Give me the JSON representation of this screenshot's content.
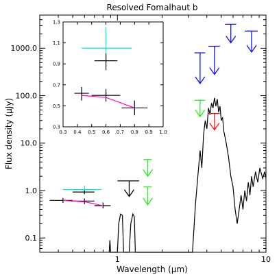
{
  "chart_data": [
    {
      "type": "scatter",
      "title": "Resolved Fomalhaut b",
      "xlabel": "Wavelength (μm)",
      "ylabel": "Flux density (μJy)",
      "xscale": "log",
      "yscale": "log",
      "xlim": [
        0.3,
        10
      ],
      "ylim": [
        0.05,
        5000
      ],
      "x_ticks": [
        1,
        10
      ],
      "x_tick_labels": [
        "1",
        "10"
      ],
      "y_ticks": [
        0.1,
        1,
        10,
        100,
        1000
      ],
      "y_tick_labels": [
        "0.1",
        "1.0",
        "10.0",
        "100.0",
        "1000.0"
      ],
      "series": [
        {
          "style": "errorbar",
          "color": "#00e5e5",
          "points": [
            {
              "x": 0.6,
              "y": 1.05,
              "xlo": 0.43,
              "xhi": 0.78,
              "ylo": 0.9,
              "yhi": 1.25
            }
          ]
        },
        {
          "style": "errorbar",
          "color": "#000000",
          "points": [
            {
              "x": 0.6,
              "y": 0.93,
              "xlo": 0.5,
              "xhi": 0.7,
              "ylo": 0.84,
              "yhi": 1.0
            },
            {
              "x": 0.43,
              "y": 0.62,
              "xlo": 0.35,
              "xhi": 0.5,
              "ylo": 0.55,
              "yhi": 0.7
            },
            {
              "x": 0.6,
              "y": 0.6,
              "xlo": 0.5,
              "xhi": 0.7,
              "ylo": 0.52,
              "yhi": 0.68
            },
            {
              "x": 0.8,
              "y": 0.48,
              "xlo": 0.7,
              "xhi": 0.9,
              "ylo": 0.42,
              "yhi": 0.56
            }
          ]
        },
        {
          "style": "line",
          "color": "#ff00cc",
          "points": [
            {
              "x": 0.43,
              "y": 0.62
            },
            {
              "x": 0.6,
              "y": 0.58
            },
            {
              "x": 0.8,
              "y": 0.48
            }
          ]
        },
        {
          "style": "upper_limit",
          "color": "#000000",
          "points": [
            {
              "x": 1.2,
              "y": 1.6,
              "xlo": 1.0,
              "xhi": 1.4,
              "arrow_to": 0.75
            }
          ]
        },
        {
          "style": "upper_limit",
          "color": "#22ee22",
          "points": [
            {
              "x": 1.6,
              "y": 4.5,
              "xlo": 1.5,
              "xhi": 1.7,
              "arrow_to": 2.0
            },
            {
              "x": 1.6,
              "y": 1.2,
              "xlo": 1.5,
              "xhi": 1.7,
              "arrow_to": 0.5
            },
            {
              "x": 3.6,
              "y": 80,
              "xlo": 3.3,
              "xhi": 3.9,
              "arrow_to": 36
            }
          ]
        },
        {
          "style": "upper_limit",
          "color": "#ff1111",
          "points": [
            {
              "x": 4.5,
              "y": 42,
              "xlo": 4.1,
              "xhi": 4.9,
              "arrow_to": 19
            }
          ]
        },
        {
          "style": "upper_limit",
          "color": "#1111ee",
          "points": [
            {
              "x": 3.6,
              "y": 800,
              "xlo": 3.3,
              "xhi": 3.9,
              "arrow_to": 180
            },
            {
              "x": 4.5,
              "y": 1100,
              "xlo": 4.1,
              "xhi": 4.9,
              "arrow_to": 280
            },
            {
              "x": 5.8,
              "y": 3200,
              "xlo": 5.3,
              "xhi": 6.3,
              "arrow_to": 1300
            },
            {
              "x": 8.0,
              "y": 2300,
              "xlo": 7.2,
              "xhi": 8.8,
              "arrow_to": 830
            }
          ]
        },
        {
          "style": "line",
          "color": "#000000",
          "points": [
            {
              "x": 0.88,
              "y": 0.05
            },
            {
              "x": 0.89,
              "y": 0.09
            },
            {
              "x": 0.9,
              "y": 0.05
            },
            {
              "x": 1.0,
              "y": 0.05
            },
            {
              "x": 1.02,
              "y": 0.2
            },
            {
              "x": 1.05,
              "y": 0.32
            },
            {
              "x": 1.08,
              "y": 0.3
            },
            {
              "x": 1.1,
              "y": 0.05
            },
            {
              "x": 1.2,
              "y": 0.05
            },
            {
              "x": 1.23,
              "y": 0.2
            },
            {
              "x": 1.27,
              "y": 0.32
            },
            {
              "x": 1.3,
              "y": 0.28
            },
            {
              "x": 1.32,
              "y": 0.05
            },
            {
              "x": 3.2,
              "y": 0.05
            },
            {
              "x": 3.35,
              "y": 0.5
            },
            {
              "x": 3.5,
              "y": 2.5
            },
            {
              "x": 3.6,
              "y": 7
            },
            {
              "x": 3.7,
              "y": 3
            },
            {
              "x": 3.8,
              "y": 15
            },
            {
              "x": 3.9,
              "y": 30
            },
            {
              "x": 4.0,
              "y": 20
            },
            {
              "x": 4.1,
              "y": 55
            },
            {
              "x": 4.2,
              "y": 40
            },
            {
              "x": 4.3,
              "y": 70
            },
            {
              "x": 4.4,
              "y": 55
            },
            {
              "x": 4.5,
              "y": 90
            },
            {
              "x": 4.6,
              "y": 60
            },
            {
              "x": 4.7,
              "y": 85
            },
            {
              "x": 4.8,
              "y": 45
            },
            {
              "x": 4.9,
              "y": 60
            },
            {
              "x": 5.0,
              "y": 30
            },
            {
              "x": 5.1,
              "y": 35
            },
            {
              "x": 5.2,
              "y": 18
            },
            {
              "x": 5.4,
              "y": 10
            },
            {
              "x": 5.6,
              "y": 5
            },
            {
              "x": 5.8,
              "y": 2
            },
            {
              "x": 6.0,
              "y": 1.2
            },
            {
              "x": 6.2,
              "y": 0.4
            },
            {
              "x": 6.4,
              "y": 0.2
            },
            {
              "x": 6.6,
              "y": 0.4
            },
            {
              "x": 6.8,
              "y": 0.8
            },
            {
              "x": 7.0,
              "y": 0.4
            },
            {
              "x": 7.2,
              "y": 1.0
            },
            {
              "x": 7.4,
              "y": 0.6
            },
            {
              "x": 7.6,
              "y": 1.5
            },
            {
              "x": 7.8,
              "y": 0.8
            },
            {
              "x": 8.0,
              "y": 2.0
            },
            {
              "x": 8.2,
              "y": 1.2
            },
            {
              "x": 8.5,
              "y": 2.5
            },
            {
              "x": 8.8,
              "y": 1.5
            },
            {
              "x": 9.1,
              "y": 3.0
            },
            {
              "x": 9.5,
              "y": 1.8
            },
            {
              "x": 9.8,
              "y": 2.5
            },
            {
              "x": 10.0,
              "y": 1.8
            }
          ]
        }
      ]
    },
    {
      "type": "scatter",
      "title": "",
      "xscale": "linear",
      "yscale": "linear",
      "xlim": [
        0.3,
        1.0
      ],
      "ylim": [
        0.3,
        1.3
      ],
      "x_ticks": [
        0.3,
        0.4,
        0.5,
        0.6,
        0.7,
        0.8,
        0.9,
        1.0
      ],
      "x_tick_labels": [
        "0.3",
        "0.4",
        "0.5",
        "0.6",
        "0.7",
        "0.8",
        "0.9",
        "1.0"
      ],
      "y_ticks": [
        0.3,
        0.5,
        0.7,
        0.9,
        1.1,
        1.3
      ],
      "y_tick_labels": [
        "0.3",
        "0.5",
        "0.7",
        "0.9",
        "1.1",
        "1.3"
      ],
      "series": [
        {
          "style": "errorbar",
          "color": "#00e5e5",
          "points": [
            {
              "x": 0.6,
              "y": 1.05,
              "xlo": 0.43,
              "xhi": 0.78,
              "ylo": 0.88,
              "yhi": 1.25
            }
          ]
        },
        {
          "style": "errorbar",
          "color": "#000000",
          "points": [
            {
              "x": 0.6,
              "y": 0.93,
              "xlo": 0.52,
              "xhi": 0.68,
              "ylo": 0.84,
              "yhi": 1.0
            },
            {
              "x": 0.43,
              "y": 0.62,
              "xlo": 0.38,
              "xhi": 0.48,
              "ylo": 0.55,
              "yhi": 0.68
            },
            {
              "x": 0.6,
              "y": 0.6,
              "xlo": 0.5,
              "xhi": 0.7,
              "ylo": 0.54,
              "yhi": 0.66
            },
            {
              "x": 0.8,
              "y": 0.48,
              "xlo": 0.71,
              "xhi": 0.89,
              "ylo": 0.41,
              "yhi": 0.55
            }
          ]
        },
        {
          "style": "line",
          "color": "#ff00cc",
          "points": [
            {
              "x": 0.43,
              "y": 0.6
            },
            {
              "x": 0.6,
              "y": 0.58
            },
            {
              "x": 0.8,
              "y": 0.48
            }
          ]
        }
      ]
    }
  ]
}
